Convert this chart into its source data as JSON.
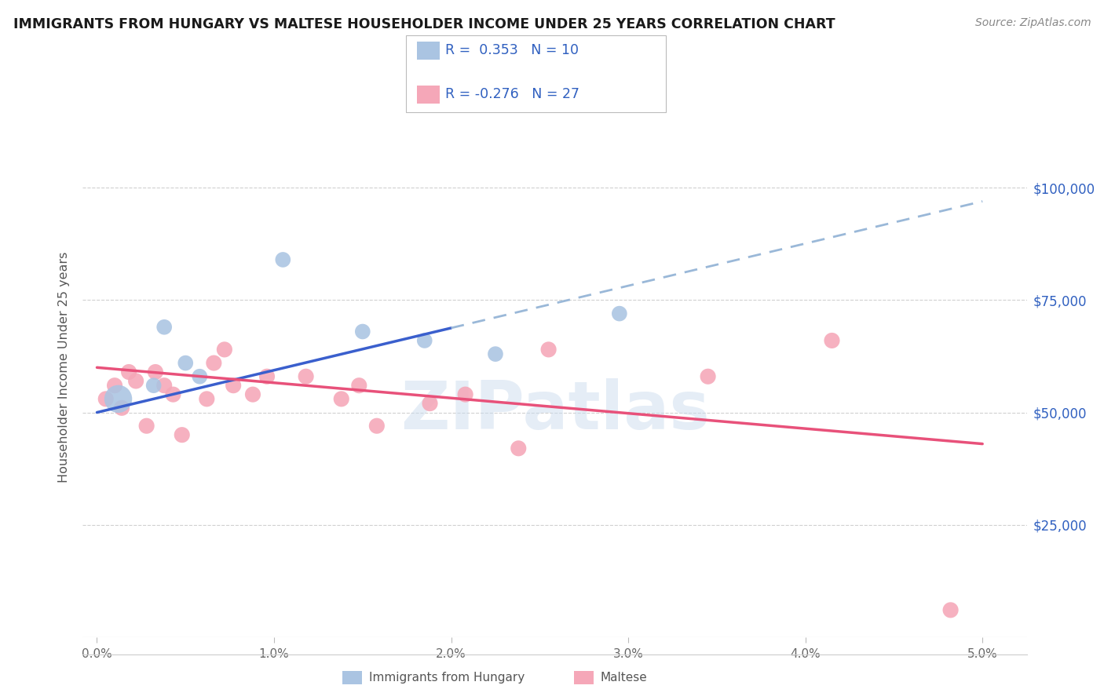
{
  "title": "IMMIGRANTS FROM HUNGARY VS MALTESE HOUSEHOLDER INCOME UNDER 25 YEARS CORRELATION CHART",
  "source": "Source: ZipAtlas.com",
  "ylabel": "Householder Income Under 25 years",
  "ytick_labels": [
    "$25,000",
    "$50,000",
    "$75,000",
    "$100,000"
  ],
  "ytick_vals": [
    25000,
    50000,
    75000,
    100000
  ],
  "xlabel_ticks": [
    "0.0%",
    "1.0%",
    "2.0%",
    "3.0%",
    "4.0%",
    "5.0%"
  ],
  "xlabel_vals": [
    0.0,
    1.0,
    2.0,
    3.0,
    4.0,
    5.0
  ],
  "ylim": [
    0,
    120000
  ],
  "xlim": [
    -0.08,
    5.25
  ],
  "r_hungary": 0.353,
  "n_hungary": 10,
  "r_maltese": -0.276,
  "n_maltese": 27,
  "hungary_color": "#aac4e2",
  "maltese_color": "#f5a7b8",
  "hungary_line_color": "#3a5fcd",
  "maltese_line_color": "#e8517a",
  "hungary_dashed_color": "#9ab8d8",
  "background_color": "#ffffff",
  "watermark": "ZIPatlas",
  "hungary_points": [
    [
      0.12,
      53000
    ],
    [
      0.32,
      56000
    ],
    [
      0.38,
      69000
    ],
    [
      0.5,
      61000
    ],
    [
      0.58,
      58000
    ],
    [
      1.05,
      84000
    ],
    [
      1.5,
      68000
    ],
    [
      1.85,
      66000
    ],
    [
      2.25,
      63000
    ],
    [
      2.95,
      72000
    ]
  ],
  "hungary_sizes": [
    650,
    200,
    200,
    200,
    200,
    200,
    200,
    200,
    200,
    200
  ],
  "maltese_points": [
    [
      0.05,
      53000
    ],
    [
      0.1,
      56000
    ],
    [
      0.14,
      51000
    ],
    [
      0.18,
      59000
    ],
    [
      0.22,
      57000
    ],
    [
      0.28,
      47000
    ],
    [
      0.33,
      59000
    ],
    [
      0.38,
      56000
    ],
    [
      0.43,
      54000
    ],
    [
      0.48,
      45000
    ],
    [
      0.62,
      53000
    ],
    [
      0.66,
      61000
    ],
    [
      0.72,
      64000
    ],
    [
      0.77,
      56000
    ],
    [
      0.88,
      54000
    ],
    [
      0.96,
      58000
    ],
    [
      1.18,
      58000
    ],
    [
      1.38,
      53000
    ],
    [
      1.48,
      56000
    ],
    [
      1.58,
      47000
    ],
    [
      1.88,
      52000
    ],
    [
      2.08,
      54000
    ],
    [
      2.38,
      42000
    ],
    [
      2.55,
      64000
    ],
    [
      3.45,
      58000
    ],
    [
      4.15,
      66000
    ],
    [
      4.82,
      6000
    ]
  ],
  "hungary_trendline_x": [
    0.0,
    5.0
  ],
  "hungary_trendline_y": [
    50000,
    97000
  ],
  "hungary_solid_end_x": 2.0,
  "maltese_trendline_x": [
    0.0,
    5.0
  ],
  "maltese_trendline_y": [
    60000,
    43000
  ]
}
